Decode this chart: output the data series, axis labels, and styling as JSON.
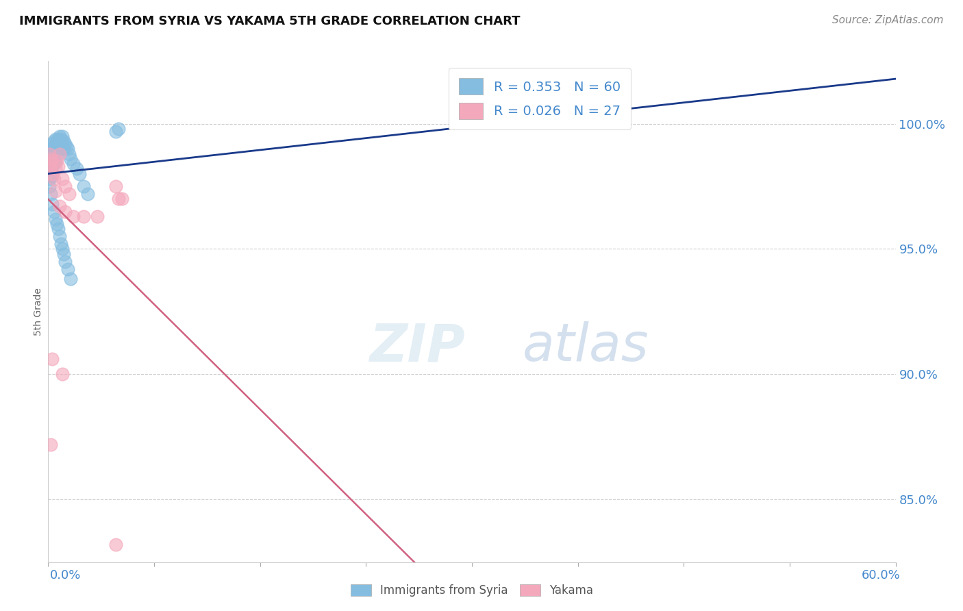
{
  "title": "IMMIGRANTS FROM SYRIA VS YAKAMA 5TH GRADE CORRELATION CHART",
  "source": "Source: ZipAtlas.com",
  "ylabel": "5th Grade",
  "ylabel_ticks": [
    "100.0%",
    "95.0%",
    "90.0%",
    "85.0%"
  ],
  "ylabel_tick_vals": [
    1.0,
    0.95,
    0.9,
    0.85
  ],
  "xlim": [
    0.0,
    0.6
  ],
  "ylim": [
    0.825,
    1.025
  ],
  "legend_blue_r": "R = 0.353",
  "legend_blue_n": "N = 60",
  "legend_pink_r": "R = 0.026",
  "legend_pink_n": "N = 27",
  "blue_color": "#85bde0",
  "pink_color": "#f4a8bc",
  "trend_blue_color": "#1a3a8a",
  "trend_pink_color": "#d06080",
  "background_color": "#ffffff",
  "grid_color": "#cccccc",
  "title_color": "#111111",
  "label_color": "#4488cc",
  "blue_points_x": [
    0.001,
    0.001,
    0.001,
    0.001,
    0.002,
    0.002,
    0.002,
    0.002,
    0.003,
    0.003,
    0.003,
    0.003,
    0.003,
    0.004,
    0.004,
    0.004,
    0.004,
    0.005,
    0.005,
    0.005,
    0.005,
    0.006,
    0.006,
    0.006,
    0.007,
    0.007,
    0.008,
    0.008,
    0.009,
    0.009,
    0.01,
    0.01,
    0.011,
    0.011,
    0.012,
    0.013,
    0.014,
    0.015,
    0.016,
    0.018,
    0.02,
    0.022,
    0.025,
    0.028,
    0.001,
    0.002,
    0.003,
    0.004,
    0.005,
    0.006,
    0.007,
    0.008,
    0.009,
    0.01,
    0.011,
    0.012,
    0.014,
    0.016,
    0.05,
    0.048
  ],
  "blue_points_y": [
    0.988,
    0.985,
    0.982,
    0.978,
    0.99,
    0.987,
    0.984,
    0.98,
    0.992,
    0.989,
    0.986,
    0.983,
    0.979,
    0.993,
    0.991,
    0.988,
    0.984,
    0.994,
    0.991,
    0.988,
    0.985,
    0.993,
    0.99,
    0.987,
    0.994,
    0.991,
    0.995,
    0.992,
    0.994,
    0.991,
    0.995,
    0.992,
    0.993,
    0.99,
    0.992,
    0.991,
    0.99,
    0.988,
    0.986,
    0.984,
    0.982,
    0.98,
    0.975,
    0.972,
    0.975,
    0.972,
    0.968,
    0.965,
    0.962,
    0.96,
    0.958,
    0.955,
    0.952,
    0.95,
    0.948,
    0.945,
    0.942,
    0.938,
    0.998,
    0.997
  ],
  "pink_points_x": [
    0.001,
    0.001,
    0.002,
    0.002,
    0.003,
    0.003,
    0.004,
    0.005,
    0.006,
    0.007,
    0.008,
    0.01,
    0.012,
    0.015,
    0.005,
    0.008,
    0.012,
    0.018,
    0.025,
    0.035,
    0.003,
    0.01,
    0.048,
    0.052,
    0.048,
    0.05,
    0.002
  ],
  "pink_points_y": [
    0.988,
    0.984,
    0.986,
    0.982,
    0.985,
    0.98,
    0.978,
    0.982,
    0.985,
    0.983,
    0.988,
    0.978,
    0.975,
    0.972,
    0.973,
    0.967,
    0.965,
    0.963,
    0.963,
    0.963,
    0.906,
    0.9,
    0.975,
    0.97,
    0.832,
    0.97,
    0.872
  ]
}
